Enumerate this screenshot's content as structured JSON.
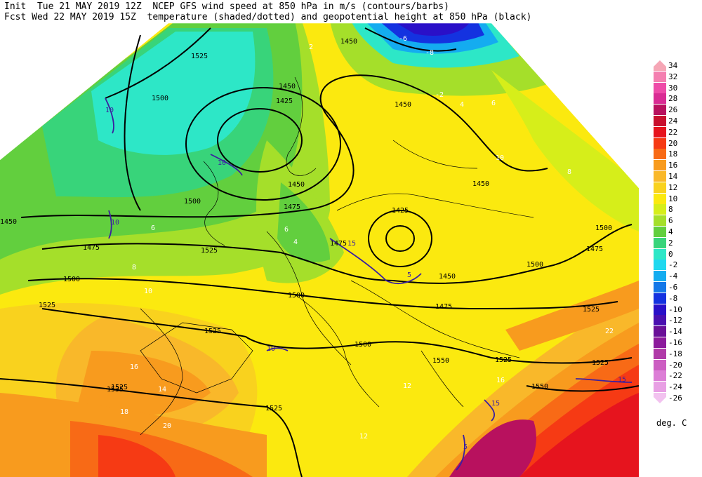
{
  "header": {
    "line1": "Init  Tue 21 MAY 2019 12Z  NCEP GFS wind speed at 850 hPa in m/s (contours/barbs)",
    "line2": "Fcst Wed 22 MAY 2019 15Z  temperature (shaded/dotted) and geopotential height at 850 hPa (black)"
  },
  "colorbar": {
    "unit": "deg. C",
    "levels": [
      {
        "label": "34",
        "color": "#f5a6b5"
      },
      {
        "label": "32",
        "color": "#f47fb0"
      },
      {
        "label": "30",
        "color": "#ee4ba8"
      },
      {
        "label": "28",
        "color": "#d92c94"
      },
      {
        "label": "26",
        "color": "#b8115e"
      },
      {
        "label": "24",
        "color": "#c8102e"
      },
      {
        "label": "22",
        "color": "#e6141e"
      },
      {
        "label": "20",
        "color": "#f63a14"
      },
      {
        "label": "18",
        "color": "#f86a16"
      },
      {
        "label": "16",
        "color": "#f89b1e"
      },
      {
        "label": "14",
        "color": "#f9b82a"
      },
      {
        "label": "12",
        "color": "#f9d21e"
      },
      {
        "label": "10",
        "color": "#fbe90f"
      },
      {
        "label": "8",
        "color": "#d6ee1a"
      },
      {
        "label": "6",
        "color": "#a5df2a"
      },
      {
        "label": "4",
        "color": "#62cf3e"
      },
      {
        "label": "2",
        "color": "#38d47a"
      },
      {
        "label": "0",
        "color": "#2de7c7"
      },
      {
        "label": "-2",
        "color": "#1fd8ef"
      },
      {
        "label": "-4",
        "color": "#14acf0"
      },
      {
        "label": "-6",
        "color": "#1478e8"
      },
      {
        "label": "-8",
        "color": "#1432e0"
      },
      {
        "label": "-10",
        "color": "#2a10c8"
      },
      {
        "label": "-12",
        "color": "#4a10b0"
      },
      {
        "label": "-14",
        "color": "#6a1098"
      },
      {
        "label": "-16",
        "color": "#8c1a9c"
      },
      {
        "label": "-18",
        "color": "#b03aa8"
      },
      {
        "label": "-20",
        "color": "#cc5ec2"
      },
      {
        "label": "-22",
        "color": "#dc7ed6"
      },
      {
        "label": "-24",
        "color": "#e89fe4"
      },
      {
        "label": "-26",
        "color": "#f2c2ef"
      }
    ]
  },
  "map": {
    "height_labels": [
      "1525",
      "1500",
      "1450",
      "1425",
      "1450",
      "1450",
      "1425",
      "1450",
      "1500",
      "1475",
      "1525",
      "1450",
      "1475",
      "1500",
      "1525",
      "1500",
      "1525",
      "1525",
      "1475",
      "1450",
      "1500",
      "1500",
      "1525",
      "1550",
      "1525",
      "1525",
      "1535",
      "1525",
      "1550",
      "1450",
      "1475",
      "1475",
      "1500"
    ],
    "wind_labels": [
      "10",
      "15",
      "10",
      "15",
      "15",
      "10",
      "10",
      "5",
      "5"
    ],
    "temp_labels": [
      "2",
      "6",
      "4",
      "6",
      "8",
      "10",
      "12",
      "14",
      "16",
      "18",
      "20",
      "22",
      "16",
      "12",
      "-2",
      "-6",
      "-8",
      "4",
      "6",
      "8",
      "10"
    ]
  }
}
